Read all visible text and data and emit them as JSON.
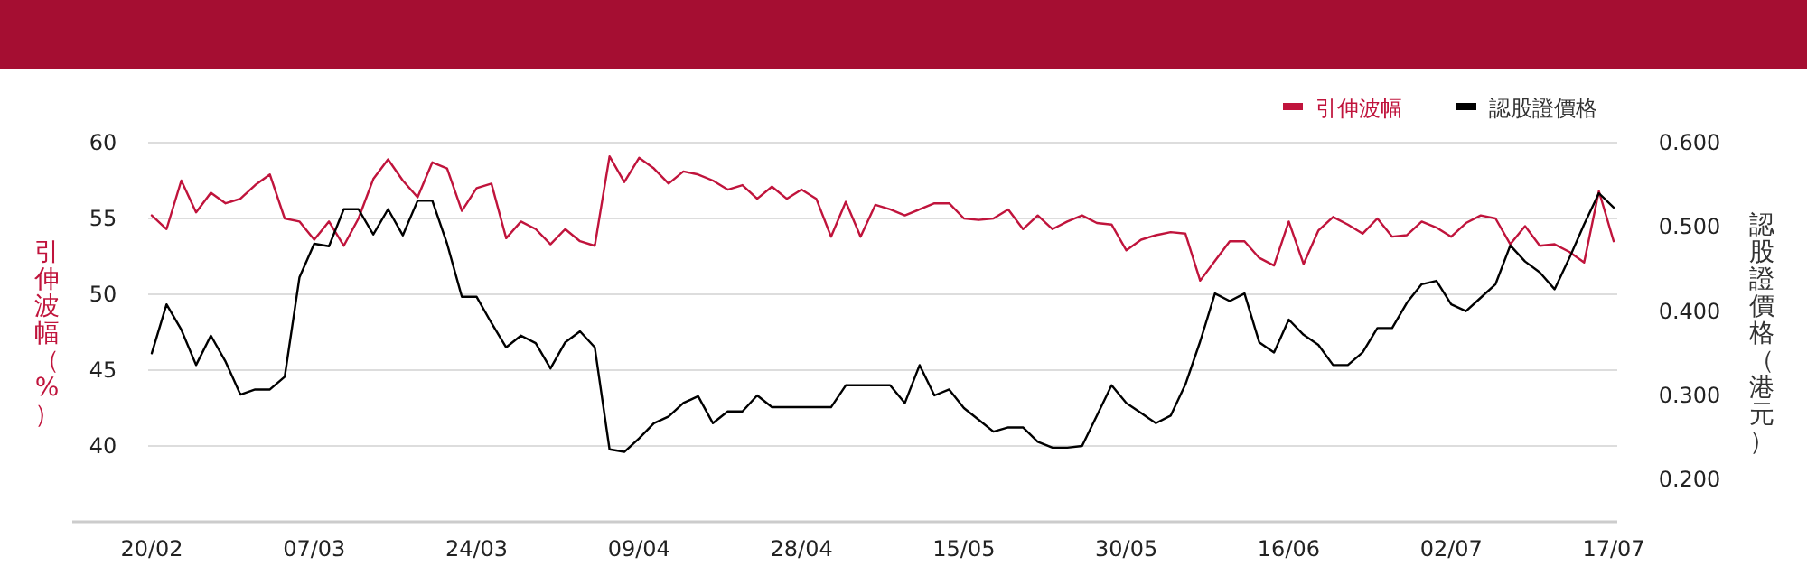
{
  "chart_data": {
    "type": "line",
    "categories": [
      "20/02",
      null,
      null,
      null,
      null,
      null,
      null,
      null,
      null,
      null,
      null,
      "07/03",
      null,
      null,
      null,
      null,
      null,
      null,
      null,
      null,
      null,
      null,
      "24/03",
      null,
      null,
      null,
      null,
      null,
      null,
      null,
      null,
      null,
      null,
      "09/04",
      null,
      null,
      null,
      null,
      null,
      null,
      null,
      null,
      null,
      null,
      "28/04",
      null,
      null,
      null,
      null,
      null,
      null,
      null,
      null,
      null,
      null,
      "15/05",
      null,
      null,
      null,
      null,
      null,
      null,
      null,
      null,
      null,
      null,
      "30/05",
      null,
      null,
      null,
      null,
      null,
      null,
      null,
      null,
      null,
      null,
      "16/06",
      null,
      null,
      null,
      null,
      null,
      null,
      null,
      null,
      null,
      null,
      "02/07",
      null,
      null,
      null,
      null,
      null,
      null,
      null,
      null,
      null,
      null,
      "17/07"
    ],
    "series": [
      {
        "name": "引伸波幅",
        "color": "#c0143c",
        "values": [
          55.2,
          54.3,
          57.5,
          55.4,
          56.7,
          56.0,
          56.3,
          57.2,
          57.9,
          55.0,
          54.8,
          53.6,
          54.8,
          53.2,
          55.0,
          57.6,
          58.9,
          57.5,
          56.4,
          58.7,
          58.3,
          55.5,
          57.0,
          57.3,
          53.7,
          54.8,
          54.3,
          53.3,
          54.3,
          53.5,
          53.2,
          59.1,
          57.4,
          59.0,
          58.3,
          57.3,
          58.1,
          57.9,
          57.5,
          56.9,
          57.2,
          56.3,
          57.1,
          56.3,
          56.9,
          56.3,
          53.8,
          56.1,
          53.8,
          55.9,
          55.6,
          55.2,
          55.6,
          56.0,
          56.0,
          55.0,
          54.9,
          55.0,
          55.6,
          54.3,
          55.2,
          54.3,
          54.8,
          55.2,
          54.7,
          54.6,
          52.9,
          53.6,
          53.9,
          54.1,
          54.0,
          50.9,
          52.2,
          53.5,
          53.5,
          52.4,
          51.9,
          54.8,
          52.0,
          54.2,
          55.1,
          54.6,
          54.0,
          55.0,
          53.8,
          53.9,
          54.8,
          54.4,
          53.8,
          54.7,
          55.2,
          55.0,
          53.3,
          54.5,
          53.2,
          53.3,
          52.8,
          52.1,
          56.8,
          53.5
        ]
      },
      {
        "name": "認股證價格",
        "color": "#000000",
        "axis": "y2",
        "values": [
          0.35,
          0.408,
          0.378,
          0.336,
          0.371,
          0.34,
          0.301,
          0.307,
          0.307,
          0.322,
          0.44,
          0.48,
          0.477,
          0.521,
          0.521,
          0.491,
          0.521,
          0.49,
          0.531,
          0.531,
          0.48,
          0.417,
          0.417,
          0.386,
          0.357,
          0.371,
          0.362,
          0.332,
          0.363,
          0.376,
          0.357,
          0.236,
          0.233,
          0.249,
          0.267,
          0.275,
          0.291,
          0.299,
          0.267,
          0.281,
          0.281,
          0.3,
          0.286,
          0.286,
          0.286,
          0.286,
          0.286,
          0.312,
          0.312,
          0.312,
          0.312,
          0.291,
          0.336,
          0.3,
          0.307,
          0.285,
          0.271,
          0.257,
          0.262,
          0.262,
          0.245,
          0.238,
          0.238,
          0.24,
          0.276,
          0.312,
          0.291,
          0.279,
          0.267,
          0.276,
          0.313,
          0.364,
          0.421,
          0.412,
          0.421,
          0.363,
          0.351,
          0.39,
          0.372,
          0.36,
          0.336,
          0.336,
          0.351,
          0.38,
          0.38,
          0.41,
          0.432,
          0.436,
          0.408,
          0.4,
          0.416,
          0.432,
          0.478,
          0.459,
          0.446,
          0.426,
          0.463,
          0.503,
          0.54,
          0.523
        ]
      }
    ],
    "ylabel": "引伸波幅（%）",
    "y2label": "認股證價格（港元）",
    "ylim": [
      35,
      60
    ],
    "yticks": [
      40,
      45,
      50,
      55,
      60
    ],
    "y2lim": [
      0.15,
      0.6
    ],
    "y2ticks": [
      {
        "value": 0.2,
        "label": "0.200"
      },
      {
        "value": 0.3,
        "label": "0.300"
      },
      {
        "value": 0.4,
        "label": "0.400"
      },
      {
        "value": 0.5,
        "label": "0.500"
      },
      {
        "value": 0.6,
        "label": "0.600"
      }
    ],
    "grid": "y",
    "legend": "top right"
  }
}
